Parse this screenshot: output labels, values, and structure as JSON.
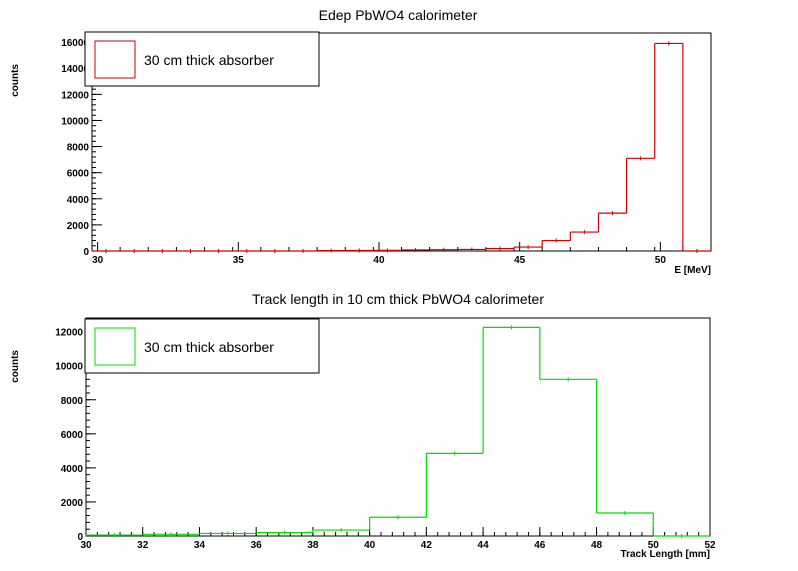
{
  "chart_data": [
    {
      "type": "histogram",
      "title": "Edep PbWO4 calorimeter",
      "xlabel": "E [MeV]",
      "ylabel": "counts",
      "xlim": [
        29.8,
        51.8
      ],
      "ylim": [
        0,
        16700
      ],
      "x_ticks": [
        30,
        35,
        40,
        45,
        50
      ],
      "x_tick_labels": [
        "30",
        "35",
        "40",
        "45",
        "50"
      ],
      "y_ticks": [
        0,
        2000,
        4000,
        6000,
        8000,
        10000,
        12000,
        14000,
        16000
      ],
      "y_tick_labels": [
        "0",
        "2000",
        "4000",
        "6000",
        "8000",
        "10000",
        "12000",
        "14000",
        "16000"
      ],
      "x_minor_step": 1,
      "y_minor_step": 400,
      "bin_edges": [
        29.8,
        30.8,
        31.8,
        32.8,
        33.8,
        34.8,
        35.8,
        36.8,
        37.8,
        38.8,
        39.8,
        40.8,
        41.8,
        42.8,
        43.8,
        44.8,
        45.8,
        46.8,
        47.8,
        48.8,
        49.8,
        50.8,
        51.8
      ],
      "values": [
        0,
        0,
        0,
        0,
        0,
        0,
        0,
        0,
        30,
        40,
        50,
        80,
        100,
        120,
        180,
        300,
        800,
        1450,
        2900,
        7100,
        15900,
        0
      ],
      "color": "#cc0000",
      "legend": {
        "label": "30 cm thick absorber",
        "placement": "top-left"
      }
    },
    {
      "type": "histogram",
      "title": "Track length in 10 cm thick PbWO4 calorimeter",
      "xlabel": "Track Length [mm]",
      "ylabel": "counts",
      "xlim": [
        30,
        52
      ],
      "ylim": [
        0,
        12800
      ],
      "x_ticks": [
        30,
        32,
        34,
        36,
        38,
        40,
        42,
        44,
        46,
        48,
        50,
        52
      ],
      "x_tick_labels": [
        "30",
        "32",
        "34",
        "36",
        "38",
        "40",
        "42",
        "44",
        "46",
        "48",
        "50",
        "52"
      ],
      "y_ticks": [
        0,
        2000,
        4000,
        6000,
        8000,
        10000,
        12000
      ],
      "y_tick_labels": [
        "0",
        "2000",
        "4000",
        "6000",
        "8000",
        "10000",
        "12000"
      ],
      "x_minor_step": 0.4,
      "y_minor_step": 400,
      "bin_edges": [
        30,
        32,
        34,
        36,
        38,
        40,
        42,
        44,
        46,
        48,
        50,
        52
      ],
      "values": [
        50,
        100,
        150,
        200,
        350,
        1100,
        4850,
        12250,
        9200,
        1350,
        0
      ],
      "color": "#00dd00",
      "legend": {
        "label": "30 cm thick absorber",
        "placement": "top-left"
      }
    }
  ],
  "colors": {
    "background": "#ffffff",
    "frame": "#000000"
  }
}
